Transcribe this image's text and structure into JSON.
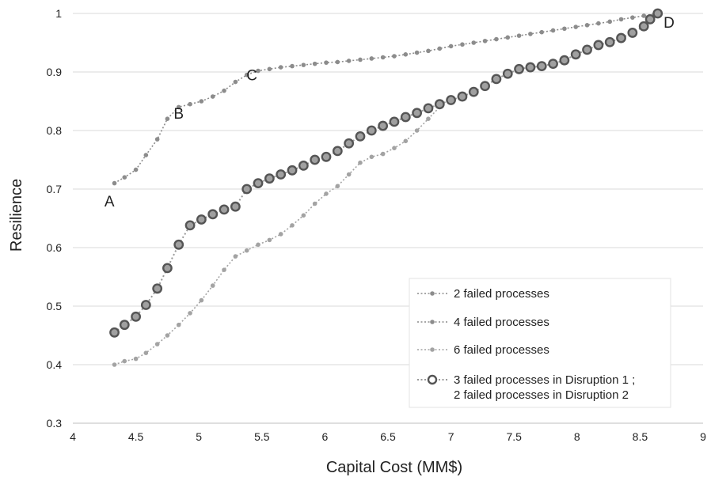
{
  "chart_data": {
    "type": "line",
    "title": "",
    "xlabel": "Capital Cost (MM$)",
    "ylabel": "Resilience",
    "xlim": [
      4,
      9
    ],
    "ylim": [
      0.3,
      1
    ],
    "x_ticks": [
      "4",
      "4.5",
      "5",
      "5.5",
      "6",
      "6.5",
      "7",
      "7.5",
      "8",
      "8.5",
      "9"
    ],
    "y_ticks": [
      "0.3",
      "0.4",
      "0.5",
      "0.6",
      "0.7",
      "0.8",
      "0.9",
      "1"
    ],
    "grid": "horizontal",
    "legend_position": "bottom-right",
    "annotations": [
      {
        "label": "A",
        "x": 4.29,
        "y": 0.68
      },
      {
        "label": "B",
        "x": 4.84,
        "y": 0.83
      },
      {
        "label": "C",
        "x": 5.42,
        "y": 0.895
      },
      {
        "label": "D",
        "x": 8.73,
        "y": 0.985
      }
    ],
    "colors": {
      "series2": "#8c8c8c",
      "series4": "#8c8c8c",
      "series6": "#a3a3a3",
      "series_ring_fill": "#a0a0a0",
      "series_ring_stroke": "#555555",
      "grid": "#d9d9d9"
    },
    "series": [
      {
        "name": "2 failed processes",
        "style": "small-dot",
        "points": [
          [
            4.33,
            0.71
          ],
          [
            4.41,
            0.72
          ],
          [
            4.5,
            0.733
          ],
          [
            4.58,
            0.758
          ],
          [
            4.67,
            0.785
          ],
          [
            4.75,
            0.82
          ],
          [
            4.84,
            0.84
          ],
          [
            4.93,
            0.845
          ],
          [
            5.02,
            0.85
          ],
          [
            5.11,
            0.858
          ],
          [
            5.2,
            0.868
          ],
          [
            5.29,
            0.883
          ],
          [
            5.38,
            0.895
          ],
          [
            5.47,
            0.902
          ],
          [
            5.56,
            0.905
          ],
          [
            5.65,
            0.908
          ],
          [
            5.74,
            0.91
          ],
          [
            5.83,
            0.912
          ],
          [
            5.92,
            0.914
          ],
          [
            6.01,
            0.916
          ],
          [
            6.1,
            0.917
          ],
          [
            6.19,
            0.919
          ],
          [
            6.28,
            0.921
          ],
          [
            6.37,
            0.923
          ],
          [
            6.46,
            0.925
          ],
          [
            6.55,
            0.927
          ],
          [
            6.64,
            0.93
          ],
          [
            6.73,
            0.933
          ],
          [
            6.82,
            0.936
          ],
          [
            6.91,
            0.94
          ],
          [
            7.0,
            0.944
          ],
          [
            7.09,
            0.947
          ],
          [
            7.18,
            0.95
          ],
          [
            7.27,
            0.953
          ],
          [
            7.36,
            0.956
          ],
          [
            7.45,
            0.959
          ],
          [
            7.54,
            0.962
          ],
          [
            7.63,
            0.965
          ],
          [
            7.72,
            0.968
          ],
          [
            7.81,
            0.971
          ],
          [
            7.9,
            0.974
          ],
          [
            7.99,
            0.977
          ],
          [
            8.08,
            0.98
          ],
          [
            8.17,
            0.983
          ],
          [
            8.26,
            0.986
          ],
          [
            8.35,
            0.99
          ],
          [
            8.44,
            0.993
          ],
          [
            8.53,
            0.996
          ],
          [
            8.63,
            1.0
          ]
        ]
      },
      {
        "name": "4 failed processes",
        "style": "small-dot",
        "points": []
      },
      {
        "name": "6 failed processes",
        "style": "small-dot",
        "points": [
          [
            4.33,
            0.4
          ],
          [
            4.41,
            0.406
          ],
          [
            4.5,
            0.41
          ],
          [
            4.58,
            0.42
          ],
          [
            4.67,
            0.435
          ],
          [
            4.75,
            0.45
          ],
          [
            4.84,
            0.468
          ],
          [
            4.93,
            0.488
          ],
          [
            5.02,
            0.51
          ],
          [
            5.11,
            0.535
          ],
          [
            5.2,
            0.562
          ],
          [
            5.29,
            0.585
          ],
          [
            5.38,
            0.595
          ],
          [
            5.47,
            0.605
          ],
          [
            5.56,
            0.613
          ],
          [
            5.65,
            0.623
          ],
          [
            5.74,
            0.638
          ],
          [
            5.83,
            0.655
          ],
          [
            5.92,
            0.675
          ],
          [
            6.01,
            0.692
          ],
          [
            6.1,
            0.705
          ],
          [
            6.19,
            0.725
          ],
          [
            6.28,
            0.745
          ],
          [
            6.37,
            0.755
          ],
          [
            6.46,
            0.76
          ],
          [
            6.55,
            0.77
          ],
          [
            6.64,
            0.782
          ],
          [
            6.73,
            0.8
          ],
          [
            6.82,
            0.82
          ],
          [
            6.91,
            0.84
          ]
        ]
      },
      {
        "name": "3 failed processes in Disruption 1  ;\n2 failed processes in Disruption 2",
        "style": "ring",
        "points": [
          [
            4.33,
            0.455
          ],
          [
            4.41,
            0.468
          ],
          [
            4.5,
            0.482
          ],
          [
            4.58,
            0.502
          ],
          [
            4.67,
            0.53
          ],
          [
            4.75,
            0.565
          ],
          [
            4.84,
            0.605
          ],
          [
            4.93,
            0.638
          ],
          [
            5.02,
            0.648
          ],
          [
            5.11,
            0.657
          ],
          [
            5.2,
            0.665
          ],
          [
            5.29,
            0.67
          ],
          [
            5.38,
            0.7
          ],
          [
            5.47,
            0.71
          ],
          [
            5.56,
            0.718
          ],
          [
            5.65,
            0.725
          ],
          [
            5.74,
            0.732
          ],
          [
            5.83,
            0.74
          ],
          [
            5.92,
            0.75
          ],
          [
            6.01,
            0.755
          ],
          [
            6.1,
            0.765
          ],
          [
            6.19,
            0.778
          ],
          [
            6.28,
            0.79
          ],
          [
            6.37,
            0.8
          ],
          [
            6.46,
            0.808
          ],
          [
            6.55,
            0.815
          ],
          [
            6.64,
            0.823
          ],
          [
            6.73,
            0.83
          ],
          [
            6.82,
            0.838
          ],
          [
            6.91,
            0.845
          ],
          [
            7.0,
            0.852
          ],
          [
            7.09,
            0.858
          ],
          [
            7.18,
            0.866
          ],
          [
            7.27,
            0.876
          ],
          [
            7.36,
            0.888
          ],
          [
            7.45,
            0.897
          ],
          [
            7.54,
            0.905
          ],
          [
            7.63,
            0.908
          ],
          [
            7.72,
            0.91
          ],
          [
            7.81,
            0.914
          ],
          [
            7.9,
            0.92
          ],
          [
            7.99,
            0.93
          ],
          [
            8.08,
            0.938
          ],
          [
            8.17,
            0.946
          ],
          [
            8.26,
            0.951
          ],
          [
            8.35,
            0.958
          ],
          [
            8.44,
            0.967
          ],
          [
            8.53,
            0.978
          ],
          [
            8.58,
            0.99
          ],
          [
            8.64,
            1.0
          ]
        ]
      }
    ]
  }
}
